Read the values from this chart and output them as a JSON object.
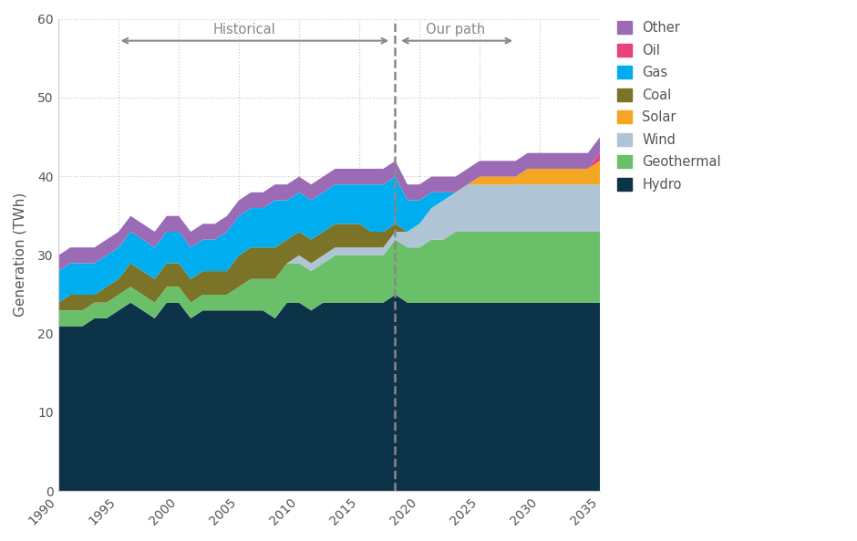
{
  "ylabel": "Generation (TWh)",
  "ylim": [
    0,
    60
  ],
  "yticks": [
    0,
    10,
    20,
    30,
    40,
    50,
    60
  ],
  "divider_year": 2018,
  "historical_label": "Historical",
  "ourpath_label": "Our path",
  "colors": {
    "Hydro": "#0d3349",
    "Geothermal": "#6abf69",
    "Wind": "#afc4d5",
    "Solar": "#f5a623",
    "Coal": "#7a7328",
    "Gas": "#00aeef",
    "Oil": "#e8417c",
    "Other": "#9b6bb5"
  },
  "years": [
    1990,
    1991,
    1992,
    1993,
    1994,
    1995,
    1996,
    1997,
    1998,
    1999,
    2000,
    2001,
    2002,
    2003,
    2004,
    2005,
    2006,
    2007,
    2008,
    2009,
    2010,
    2011,
    2012,
    2013,
    2014,
    2015,
    2016,
    2017,
    2018,
    2019,
    2020,
    2021,
    2022,
    2023,
    2024,
    2025,
    2026,
    2027,
    2028,
    2029,
    2030,
    2031,
    2032,
    2033,
    2034,
    2035
  ],
  "hydro": [
    21,
    21,
    21,
    22,
    22,
    23,
    24,
    23,
    22,
    24,
    24,
    22,
    23,
    23,
    23,
    23,
    23,
    23,
    22,
    24,
    24,
    23,
    24,
    24,
    24,
    24,
    24,
    24,
    25,
    24,
    24,
    24,
    24,
    24,
    24,
    24,
    24,
    24,
    24,
    24,
    24,
    24,
    24,
    24,
    24,
    24
  ],
  "geothermal": [
    2,
    2,
    2,
    2,
    2,
    2,
    2,
    2,
    2,
    2,
    2,
    2,
    2,
    2,
    2,
    3,
    4,
    4,
    5,
    5,
    5,
    5,
    5,
    6,
    6,
    6,
    6,
    6,
    7,
    7,
    7,
    8,
    8,
    9,
    9,
    9,
    9,
    9,
    9,
    9,
    9,
    9,
    9,
    9,
    9,
    9
  ],
  "wind": [
    0,
    0,
    0,
    0,
    0,
    0,
    0,
    0,
    0,
    0,
    0,
    0,
    0,
    0,
    0,
    0,
    0,
    0,
    0,
    0,
    1,
    1,
    1,
    1,
    1,
    1,
    1,
    1,
    1,
    2,
    3,
    4,
    5,
    5,
    6,
    6,
    6,
    6,
    6,
    6,
    6,
    6,
    6,
    6,
    6,
    6
  ],
  "coal": [
    1,
    2,
    2,
    1,
    2,
    2,
    3,
    3,
    3,
    3,
    3,
    3,
    3,
    3,
    3,
    4,
    4,
    4,
    4,
    3,
    3,
    3,
    3,
    3,
    3,
    3,
    2,
    2,
    1,
    0,
    0,
    0,
    0,
    0,
    0,
    0,
    0,
    0,
    0,
    0,
    0,
    0,
    0,
    0,
    0,
    0
  ],
  "solar": [
    0,
    0,
    0,
    0,
    0,
    0,
    0,
    0,
    0,
    0,
    0,
    0,
    0,
    0,
    0,
    0,
    0,
    0,
    0,
    0,
    0,
    0,
    0,
    0,
    0,
    0,
    0,
    0,
    0,
    0,
    0,
    0,
    0,
    0,
    0,
    1,
    1,
    1,
    1,
    2,
    2,
    2,
    2,
    2,
    2,
    3
  ],
  "gas": [
    4,
    4,
    4,
    4,
    4,
    4,
    4,
    4,
    4,
    4,
    4,
    4,
    4,
    4,
    5,
    5,
    5,
    5,
    6,
    5,
    5,
    5,
    5,
    5,
    5,
    5,
    6,
    6,
    6,
    4,
    3,
    2,
    1,
    0,
    0,
    0,
    0,
    0,
    0,
    0,
    0,
    0,
    0,
    0,
    0,
    0
  ],
  "oil": [
    0,
    0,
    0,
    0,
    0,
    0,
    0,
    0,
    0,
    0,
    0,
    0,
    0,
    0,
    0,
    0,
    0,
    0,
    0,
    0,
    0,
    0,
    0,
    0,
    0,
    0,
    0,
    0,
    0,
    0,
    0,
    0,
    0,
    0,
    0,
    0,
    0,
    0,
    0,
    0,
    0,
    0,
    0,
    0,
    0,
    1
  ],
  "other": [
    2,
    2,
    2,
    2,
    2,
    2,
    2,
    2,
    2,
    2,
    2,
    2,
    2,
    2,
    2,
    2,
    2,
    2,
    2,
    2,
    2,
    2,
    2,
    2,
    2,
    2,
    2,
    2,
    2,
    2,
    2,
    2,
    2,
    2,
    2,
    2,
    2,
    2,
    2,
    2,
    2,
    2,
    2,
    2,
    2,
    2
  ],
  "background_color": "#ffffff",
  "grid_color": "#cccccc",
  "text_color": "#555555"
}
